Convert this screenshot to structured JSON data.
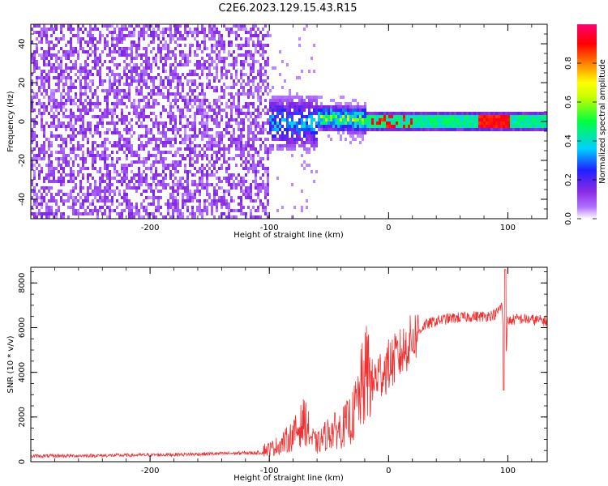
{
  "figure_title": "C2E6.2023.129.15.43.R15",
  "chart_data": [
    {
      "type": "heatmap",
      "name": "spectrogram",
      "xlabel": "Height of straight line (km)",
      "ylabel": "Frequency (Hz)",
      "xlim": [
        -300,
        133
      ],
      "ylim": [
        -50,
        50
      ],
      "xticks": [
        -200,
        -100,
        0,
        100
      ],
      "yticks": [
        -40,
        -20,
        0,
        20,
        40
      ],
      "colorbar": {
        "label": "Normalized spectral amplitude",
        "range": [
          0,
          1
        ],
        "ticks": [
          0.0,
          0.2,
          0.4,
          0.6,
          0.8
        ],
        "tick_labels": [
          "0.0",
          "0.2",
          "0.4",
          "0.6",
          "0.8"
        ],
        "colors": [
          "#ffffff",
          "#8a2be2",
          "#2020ff",
          "#00d0ff",
          "#00ff00",
          "#ffff00",
          "#ff8000",
          "#ff0000",
          "#ff0070"
        ]
      },
      "regions": [
        {
          "x_range": [
            -300,
            -100
          ],
          "f_range": [
            -50,
            50
          ],
          "amplitude": 0.05,
          "description_level": "noise"
        },
        {
          "x_range": [
            -100,
            -60
          ],
          "f_center": 0,
          "f_halfwidth": 12,
          "amplitude": 0.3
        },
        {
          "x_range": [
            -60,
            -20
          ],
          "f_center": 2,
          "f_halfwidth": 5,
          "amplitude": 0.65
        },
        {
          "x_range": [
            -20,
            133
          ],
          "f_center": 1.5,
          "f_halfwidth": 3,
          "amplitude": 0.55
        }
      ]
    },
    {
      "type": "line",
      "name": "snr",
      "xlabel": "Height of straight line (km)",
      "ylabel": "SNR (10 * v/v)",
      "xlim": [
        -300,
        133
      ],
      "ylim": [
        0,
        8700
      ],
      "xticks": [
        -200,
        -100,
        0,
        100
      ],
      "yticks": [
        0,
        2000,
        4000,
        6000,
        8000
      ],
      "series": [
        {
          "color": "#f03030",
          "x": [
            -300,
            -250,
            -200,
            -150,
            -110,
            -100,
            -90,
            -80,
            -70,
            -65,
            -60,
            -50,
            -40,
            -30,
            -20,
            -10,
            0,
            10,
            20,
            30,
            40,
            50,
            60,
            70,
            80,
            90,
            95,
            98,
            100,
            110,
            120,
            133
          ],
          "y": [
            250,
            270,
            300,
            350,
            400,
            420,
            600,
            900,
            1400,
            800,
            600,
            1000,
            1100,
            1500,
            2800,
            3800,
            4300,
            4800,
            5500,
            6100,
            6300,
            6400,
            6450,
            6500,
            6500,
            6600,
            7000,
            4500,
            6300,
            6400,
            6350,
            6300
          ]
        }
      ]
    }
  ]
}
